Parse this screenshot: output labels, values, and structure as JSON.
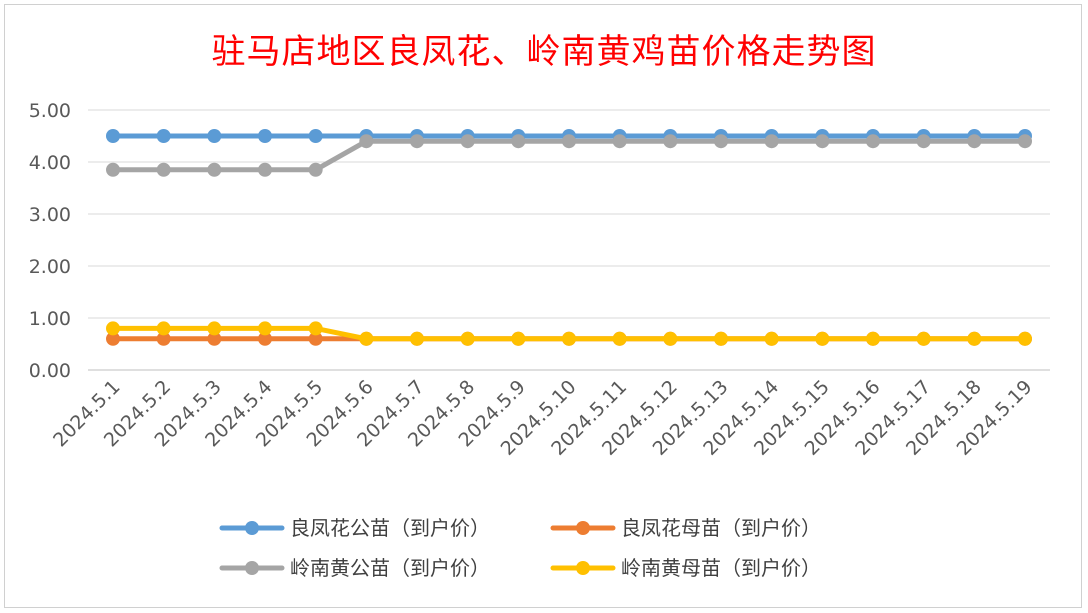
{
  "chart_data": {
    "type": "line",
    "title": "驻马店地区良凤花、岭南黄鸡苗价格走势图",
    "xlabel": "",
    "ylabel": "",
    "ylim": [
      0,
      5
    ],
    "yticks": [
      "0.00",
      "1.00",
      "2.00",
      "3.00",
      "4.00",
      "5.00"
    ],
    "grid": true,
    "legend_position": "bottom",
    "categories": [
      "2024.5.1",
      "2024.5.2",
      "2024.5.3",
      "2024.5.4",
      "2024.5.5",
      "2024.5.6",
      "2024.5.7",
      "2024.5.8",
      "2024.5.9",
      "2024.5.10",
      "2024.5.11",
      "2024.5.12",
      "2024.5.13",
      "2024.5.14",
      "2024.5.15",
      "2024.5.16",
      "2024.5.17",
      "2024.5.18",
      "2024.5.19"
    ],
    "series": [
      {
        "name": "良凤花公苗（到户价）",
        "color": "#5b9bd5",
        "values": [
          4.5,
          4.5,
          4.5,
          4.5,
          4.5,
          4.5,
          4.5,
          4.5,
          4.5,
          4.5,
          4.5,
          4.5,
          4.5,
          4.5,
          4.5,
          4.5,
          4.5,
          4.5,
          4.5
        ]
      },
      {
        "name": "良凤花母苗（到户价）",
        "color": "#ed7d31",
        "values": [
          0.6,
          0.6,
          0.6,
          0.6,
          0.6,
          0.6,
          0.6,
          0.6,
          0.6,
          0.6,
          0.6,
          0.6,
          0.6,
          0.6,
          0.6,
          0.6,
          0.6,
          0.6,
          0.6
        ]
      },
      {
        "name": "岭南黄公苗（到户价）",
        "color": "#a5a5a5",
        "values": [
          3.85,
          3.85,
          3.85,
          3.85,
          3.85,
          4.4,
          4.4,
          4.4,
          4.4,
          4.4,
          4.4,
          4.4,
          4.4,
          4.4,
          4.4,
          4.4,
          4.4,
          4.4,
          4.4
        ]
      },
      {
        "name": "岭南黄母苗（到户价）",
        "color": "#ffc000",
        "values": [
          0.8,
          0.8,
          0.8,
          0.8,
          0.8,
          0.6,
          0.6,
          0.6,
          0.6,
          0.6,
          0.6,
          0.6,
          0.6,
          0.6,
          0.6,
          0.6,
          0.6,
          0.6,
          0.6
        ]
      }
    ]
  }
}
